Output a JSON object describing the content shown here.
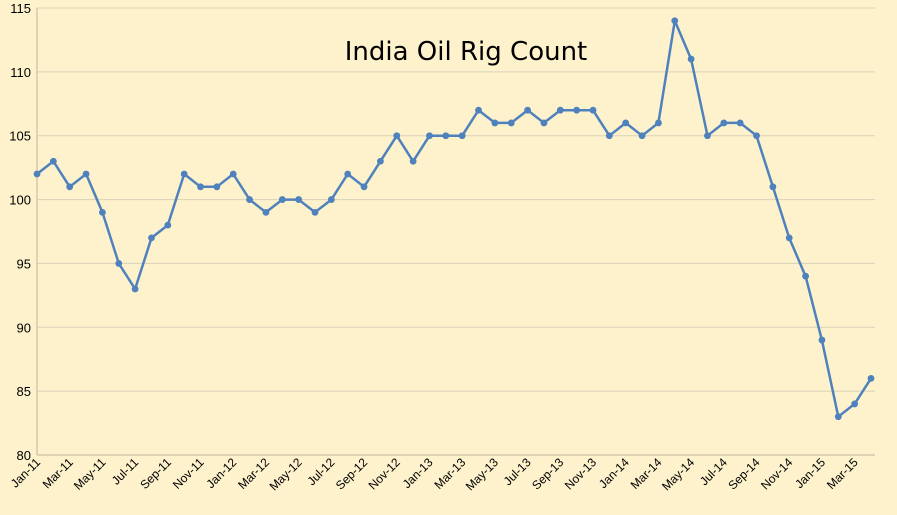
{
  "chart_data": {
    "type": "line",
    "title": "India Oil Rig Count",
    "xlabel": "",
    "ylabel": "",
    "ylim": [
      80,
      115
    ],
    "yticks": [
      80,
      85,
      90,
      95,
      100,
      105,
      110,
      115
    ],
    "grid": true,
    "legend": "none",
    "x": [
      "Jan-11",
      "Feb-11",
      "Mar-11",
      "Apr-11",
      "May-11",
      "Jun-11",
      "Jul-11",
      "Aug-11",
      "Sep-11",
      "Oct-11",
      "Nov-11",
      "Dec-11",
      "Jan-12",
      "Feb-12",
      "Mar-12",
      "Apr-12",
      "May-12",
      "Jun-12",
      "Jul-12",
      "Aug-12",
      "Sep-12",
      "Oct-12",
      "Nov-12",
      "Dec-12",
      "Jan-13",
      "Feb-13",
      "Mar-13",
      "Apr-13",
      "May-13",
      "Jun-13",
      "Jul-13",
      "Aug-13",
      "Sep-13",
      "Oct-13",
      "Nov-13",
      "Dec-13",
      "Jan-14",
      "Feb-14",
      "Mar-14",
      "Apr-14",
      "May-14",
      "Jun-14",
      "Jul-14",
      "Aug-14",
      "Sep-14",
      "Oct-14",
      "Nov-14",
      "Dec-14",
      "Jan-15",
      "Feb-15",
      "Mar-15",
      "Apr-15"
    ],
    "xtick_labels": [
      "Jan-11",
      "Mar-11",
      "May-11",
      "Jul-11",
      "Sep-11",
      "Nov-11",
      "Jan-12",
      "Mar-12",
      "May-12",
      "Jul-12",
      "Sep-12",
      "Nov-12",
      "Jan-13",
      "Mar-13",
      "May-13",
      "Jul-13",
      "Sep-13",
      "Nov-13",
      "Jan-14",
      "Mar-14",
      "May-14",
      "Jul-14",
      "Sep-14",
      "Nov-14",
      "Jan-15",
      "Mar-15"
    ],
    "series": [
      {
        "color": "#4f81bd",
        "values": [
          102,
          103,
          101,
          102,
          99,
          95,
          93,
          97,
          98,
          102,
          101,
          101,
          102,
          100,
          99,
          100,
          100,
          99,
          100,
          102,
          101,
          103,
          105,
          103,
          105,
          105,
          105,
          107,
          106,
          106,
          107,
          106,
          107,
          107,
          107,
          105,
          106,
          105,
          106,
          114,
          111,
          105,
          106,
          106,
          105,
          101,
          97,
          94,
          89,
          83,
          84,
          86
        ]
      }
    ]
  }
}
